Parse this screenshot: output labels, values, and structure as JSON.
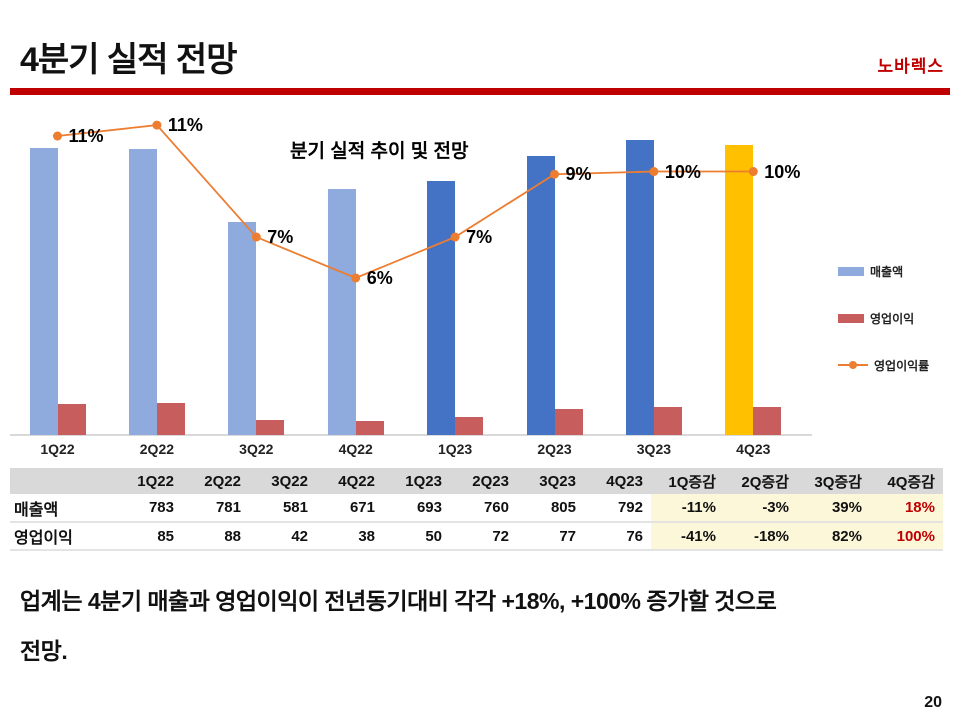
{
  "header": {
    "title": "4분기 실적 전망",
    "brand": "노바렉스"
  },
  "chart_data": {
    "type": "bar+line",
    "title": "분기 실적 추이 및 전망",
    "categories": [
      "1Q22",
      "2Q22",
      "3Q22",
      "4Q22",
      "1Q23",
      "2Q23",
      "3Q23",
      "4Q23"
    ],
    "series": [
      {
        "name": "매출액",
        "type": "bar",
        "values": [
          783,
          781,
          581,
          671,
          693,
          760,
          805,
          792
        ],
        "bar_colors": [
          "#8FAADC",
          "#8FAADC",
          "#8FAADC",
          "#8FAADC",
          "#4472C4",
          "#4472C4",
          "#4472C4",
          "#FFC000"
        ]
      },
      {
        "name": "영업이익",
        "type": "bar",
        "values": [
          85,
          88,
          42,
          38,
          50,
          72,
          77,
          76
        ],
        "color": "#C75D5D"
      },
      {
        "name": "영업이익률",
        "type": "line",
        "values_pct": [
          10.9,
          11.3,
          7.2,
          5.7,
          7.2,
          9.5,
          9.6,
          9.6
        ],
        "labels": [
          "11%",
          "11%",
          "7%",
          "6%",
          "7%",
          "9%",
          "10%",
          "10%"
        ],
        "color": "#ED7D31"
      }
    ],
    "legend_position": "right",
    "grid": false
  },
  "table": {
    "col_headers": [
      "",
      "1Q22",
      "2Q22",
      "3Q22",
      "4Q22",
      "1Q23",
      "2Q23",
      "3Q23",
      "4Q23",
      "1Q증감",
      "2Q증감",
      "3Q증감",
      "4Q증감"
    ],
    "rows": [
      {
        "label": "매출액",
        "values": [
          "783",
          "781",
          "581",
          "671",
          "693",
          "760",
          "805",
          "792",
          "-11%",
          "-3%",
          "39%",
          "18%"
        ]
      },
      {
        "label": "영업이익",
        "values": [
          "85",
          "88",
          "42",
          "38",
          "50",
          "72",
          "77",
          "76",
          "-41%",
          "-18%",
          "82%",
          "100%"
        ]
      }
    ],
    "highlight_color": "#FCF7D9",
    "hot_color": "#C00000"
  },
  "commentary": {
    "line1": "업계는 4분기 매출과 영업이익이 전년동기대비 각각 +18%, +100% 증가할 것으로",
    "line2": "전망."
  },
  "page_number": "20",
  "colors": {
    "accent_red": "#C00000",
    "bar_2022": "#8FAADC",
    "bar_2023": "#4472C4",
    "bar_4q23": "#FFC000",
    "bar_profit": "#C75D5D",
    "line_margin": "#ED7D31",
    "table_header_bg": "#D9D9D9"
  }
}
